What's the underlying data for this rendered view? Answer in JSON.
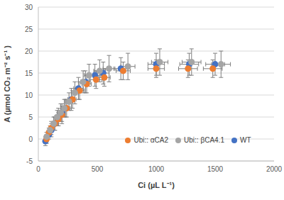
{
  "chart_data": {
    "type": "scatter",
    "x_label": "Ci (µL L⁻¹)",
    "y_label": "A (µmol CO₂ m⁻² s⁻¹ )",
    "xlim": [
      0,
      2000
    ],
    "xticks": [
      0,
      500,
      1000,
      1500,
      2000
    ],
    "ylim": [
      -5,
      30
    ],
    "yticks": [
      -5,
      0,
      5,
      10,
      15,
      20,
      25,
      30
    ],
    "grid": true,
    "legend": "lower right",
    "marker": "circle",
    "series": [
      {
        "name": "WT",
        "color": "#4472c4",
        "x": [
          60,
          90,
          110,
          140,
          170,
          200,
          230,
          280,
          340,
          400,
          480,
          550,
          700,
          1000,
          1280,
          1500
        ],
        "values": [
          -0.5,
          1,
          2,
          3.5,
          5,
          6,
          7,
          9,
          11.5,
          13,
          14.5,
          15,
          16,
          17,
          17,
          17
        ],
        "x_error": [
          10,
          15,
          15,
          20,
          20,
          25,
          30,
          30,
          40,
          40,
          50,
          50,
          60,
          70,
          80,
          80
        ],
        "y_error": [
          1,
          1,
          1.5,
          1.5,
          2,
          2,
          2,
          2.5,
          2.5,
          2.5,
          2.5,
          2.5,
          2.5,
          2.5,
          2.5,
          2.5
        ]
      },
      {
        "name": "Ubi:: αCA2",
        "color": "#ed7d31",
        "x": [
          70,
          90,
          110,
          140,
          170,
          200,
          240,
          290,
          350,
          410,
          490,
          560,
          720,
          1000,
          1270,
          1480
        ],
        "values": [
          0,
          1.5,
          2.5,
          3.5,
          4.5,
          5.5,
          7,
          9,
          11,
          12.5,
          13.5,
          14,
          15.5,
          16,
          16,
          16
        ],
        "x_error": [
          10,
          15,
          15,
          20,
          20,
          25,
          30,
          30,
          40,
          40,
          50,
          50,
          60,
          70,
          80,
          80
        ],
        "y_error": [
          1,
          1,
          1.5,
          1.5,
          1.5,
          2,
          2,
          2,
          2,
          2,
          2,
          2,
          2,
          2,
          2,
          2
        ]
      },
      {
        "name": "Ubi:: βCA4.1",
        "color": "#a5a5a5",
        "x": [
          70,
          100,
          130,
          160,
          190,
          220,
          260,
          310,
          380,
          430,
          520,
          600,
          760,
          1030,
          1300,
          1550
        ],
        "values": [
          0.5,
          2,
          3.5,
          5,
          6,
          7,
          8.5,
          10.5,
          13,
          14.5,
          15.5,
          16,
          16.5,
          17.5,
          17.5,
          17
        ],
        "x_error": [
          10,
          15,
          15,
          20,
          20,
          25,
          30,
          30,
          40,
          40,
          50,
          50,
          60,
          70,
          80,
          80
        ],
        "y_error": [
          1,
          1,
          1.5,
          1.5,
          2,
          2,
          2,
          2.5,
          2.5,
          2.5,
          2.5,
          3,
          3,
          3,
          3,
          3
        ]
      }
    ]
  }
}
